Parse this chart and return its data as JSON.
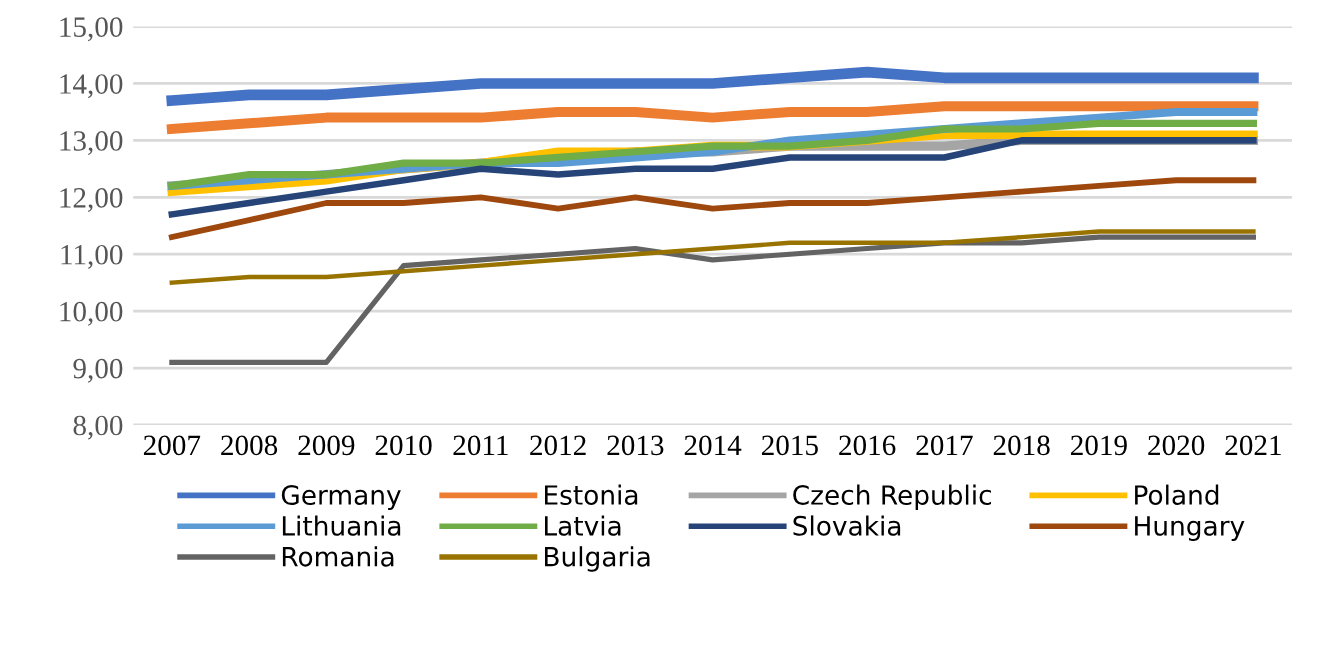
{
  "chart_data": {
    "type": "line",
    "categories": [
      "2007",
      "2008",
      "2009",
      "2010",
      "2011",
      "2012",
      "2013",
      "2014",
      "2015",
      "2016",
      "2017",
      "2018",
      "2019",
      "2020",
      "2021"
    ],
    "ylim": [
      8,
      15
    ],
    "yticks": [
      {
        "value": 8,
        "label": "8,00"
      },
      {
        "value": 9,
        "label": "9,00"
      },
      {
        "value": 10,
        "label": "10,00"
      },
      {
        "value": 11,
        "label": "11,00"
      },
      {
        "value": 12,
        "label": "12,00"
      },
      {
        "value": 13,
        "label": "13,00"
      },
      {
        "value": 14,
        "label": "14,00"
      },
      {
        "value": 15,
        "label": "15,00"
      }
    ],
    "grid": "y",
    "legend": "bottom",
    "marker": "none",
    "line_style": "solid",
    "series": [
      {
        "name": "Germany",
        "color": "#4472c4",
        "values": [
          13.7,
          13.8,
          13.8,
          13.9,
          14.0,
          14.0,
          14.0,
          14.0,
          14.1,
          14.2,
          14.1,
          14.1,
          14.1,
          14.1,
          14.1
        ]
      },
      {
        "name": "Estonia",
        "color": "#ed7d31",
        "values": [
          13.2,
          13.3,
          13.4,
          13.4,
          13.4,
          13.5,
          13.5,
          13.4,
          13.5,
          13.5,
          13.6,
          13.6,
          13.6,
          13.6,
          13.6
        ]
      },
      {
        "name": "Czech Republic",
        "color": "#a5a5a5",
        "values": [
          12.2,
          12.3,
          12.4,
          12.5,
          12.6,
          12.7,
          12.8,
          12.8,
          12.9,
          12.9,
          12.9,
          13.0,
          13.0,
          13.0,
          13.0
        ]
      },
      {
        "name": "Poland",
        "color": "#ffc000",
        "values": [
          12.1,
          12.2,
          12.3,
          12.5,
          12.6,
          12.8,
          12.8,
          12.9,
          12.9,
          13.0,
          13.1,
          13.1,
          13.1,
          13.1,
          13.1
        ]
      },
      {
        "name": "Lithuania",
        "color": "#5b9bd5",
        "values": [
          12.2,
          12.3,
          12.4,
          12.5,
          12.6,
          12.6,
          12.7,
          12.8,
          13.0,
          13.1,
          13.2,
          13.3,
          13.4,
          13.5,
          13.5
        ]
      },
      {
        "name": "Latvia",
        "color": "#70ad47",
        "values": [
          12.2,
          12.4,
          12.4,
          12.6,
          12.6,
          12.7,
          12.8,
          12.9,
          12.9,
          13.0,
          13.2,
          13.2,
          13.3,
          13.3,
          13.3
        ]
      },
      {
        "name": "Slovakia",
        "color": "#264478",
        "values": [
          11.7,
          11.9,
          12.1,
          12.3,
          12.5,
          12.4,
          12.5,
          12.5,
          12.7,
          12.7,
          12.7,
          13.0,
          13.0,
          13.0,
          13.0
        ]
      },
      {
        "name": "Hungary",
        "color": "#9e480e",
        "values": [
          11.3,
          11.6,
          11.9,
          11.9,
          12.0,
          11.8,
          12.0,
          11.8,
          11.9,
          11.9,
          12.0,
          12.1,
          12.2,
          12.3,
          12.3
        ]
      },
      {
        "name": "Romania",
        "color": "#636363",
        "values": [
          9.1,
          9.1,
          9.1,
          10.8,
          10.9,
          11.0,
          11.1,
          10.9,
          11.0,
          11.1,
          11.2,
          11.2,
          11.3,
          11.3,
          11.3
        ]
      },
      {
        "name": "Bulgaria",
        "color": "#997300",
        "values": [
          10.5,
          10.6,
          10.6,
          10.7,
          10.8,
          10.9,
          11.0,
          11.1,
          11.2,
          11.2,
          11.2,
          11.3,
          11.4,
          11.4,
          11.4
        ]
      }
    ]
  }
}
